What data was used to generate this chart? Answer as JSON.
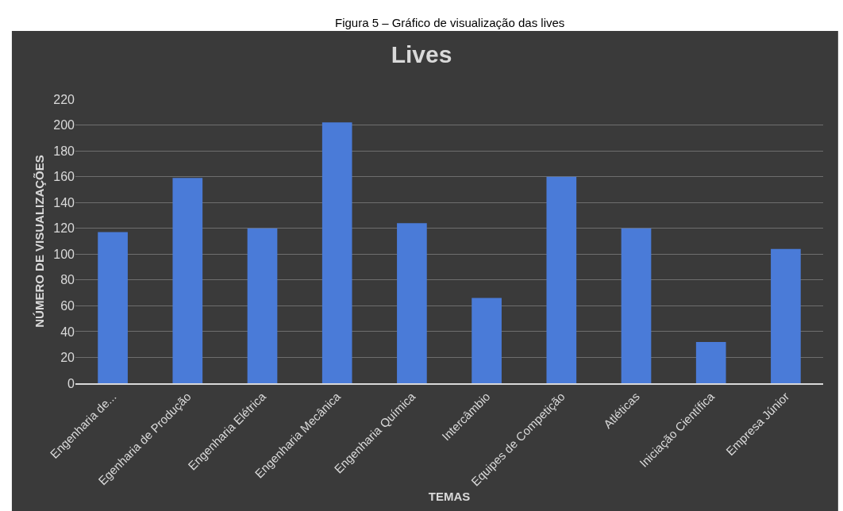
{
  "chart_data": {
    "type": "bar",
    "title": "Lives",
    "annotations": [
      "Figura 5 – Gráfico de visualização das lives"
    ],
    "xlabel": "TEMAS",
    "ylabel": "NÚMERO DE VISUALIZAÇÕES",
    "categories": [
      "Engenharia de...",
      "Egenharia de Produção",
      "Engenharia Elétrica",
      "Engenharia Mecânica",
      "Engenharia Química",
      "Intercâmbio",
      "Equipes de Competição",
      "Atléticas",
      "Iniciação Científica",
      "Empresa Júnior"
    ],
    "values": [
      117,
      159,
      120,
      202,
      124,
      66,
      160,
      120,
      32,
      104
    ],
    "color": "#4a7bd8",
    "ylim": [
      0,
      220
    ],
    "yticks": [
      0,
      20,
      40,
      60,
      80,
      100,
      120,
      140,
      160,
      180,
      200,
      220
    ],
    "grid": "y",
    "legend": false
  }
}
